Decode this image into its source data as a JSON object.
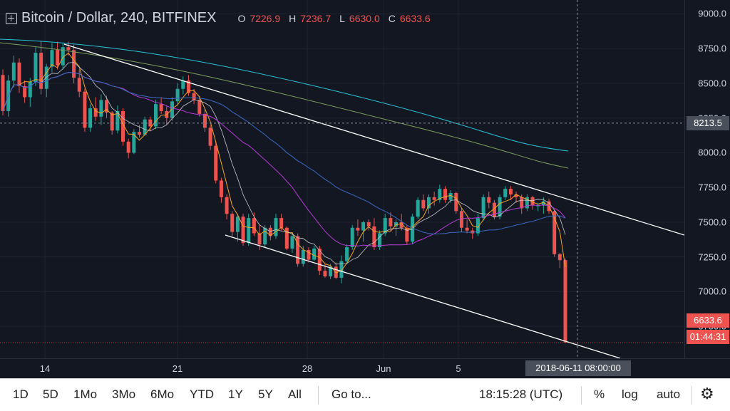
{
  "header": {
    "symbol_title": "Bitcoin / Dollar, 240, BITFINEX",
    "ohlc": [
      {
        "key": "O",
        "value": "7226.9"
      },
      {
        "key": "H",
        "value": "7236.7"
      },
      {
        "key": "L",
        "value": "6630.0"
      },
      {
        "key": "C",
        "value": "6633.6"
      }
    ]
  },
  "price_labels": {
    "crosshair_price": "8213.5",
    "last_price": "6633.6",
    "countdown": "01:44:31"
  },
  "crosshair_time": "2018-06-11 08:00:00",
  "toolbar": {
    "ranges": [
      "1D",
      "5D",
      "1Mo",
      "3Mo",
      "6Mo",
      "YTD",
      "1Y",
      "5Y",
      "All"
    ],
    "goto": "Go to...",
    "clock": "18:15:28 (UTC)",
    "percent": "%",
    "log": "log",
    "auto": "auto"
  },
  "colors": {
    "background": "#131722",
    "up": "#26a69a",
    "down": "#ef5350",
    "trendline": "#ffffff"
  },
  "chart_data": {
    "type": "candlestick",
    "symbol": "BTCUSD",
    "interval": "240",
    "exchange": "BITFINEX",
    "x_ticks": [
      "14",
      "21",
      "28",
      "Jun",
      "5"
    ],
    "y_ticks": [
      9000.0,
      8750.0,
      8500.0,
      8250.0,
      8000.0,
      7750.0,
      7500.0,
      7250.0,
      7000.0,
      6750.0
    ],
    "ylim": [
      6520,
      9100
    ],
    "candles_estimated": [
      [
        8560,
        8600,
        8270,
        8300
      ],
      [
        8300,
        8560,
        8260,
        8520
      ],
      [
        8520,
        8700,
        8470,
        8650
      ],
      [
        8650,
        8680,
        8430,
        8480
      ],
      [
        8480,
        8520,
        8360,
        8400
      ],
      [
        8400,
        8540,
        8330,
        8510
      ],
      [
        8510,
        8760,
        8480,
        8720
      ],
      [
        8720,
        8800,
        8420,
        8460
      ],
      [
        8460,
        8640,
        8400,
        8620
      ],
      [
        8620,
        8790,
        8580,
        8740
      ],
      [
        8740,
        8800,
        8600,
        8630
      ],
      [
        8630,
        8790,
        8600,
        8760
      ],
      [
        8760,
        8800,
        8700,
        8740
      ],
      [
        8740,
        8780,
        8500,
        8540
      ],
      [
        8540,
        8600,
        8400,
        8440
      ],
      [
        8440,
        8460,
        8150,
        8180
      ],
      [
        8180,
        8350,
        8150,
        8320
      ],
      [
        8320,
        8400,
        8230,
        8260
      ],
      [
        8260,
        8420,
        8200,
        8380
      ],
      [
        8380,
        8410,
        8250,
        8290
      ],
      [
        8290,
        8300,
        8130,
        8160
      ],
      [
        8160,
        8340,
        8140,
        8300
      ],
      [
        8300,
        8320,
        8050,
        8080
      ],
      [
        8080,
        8100,
        7960,
        8000
      ],
      [
        8000,
        8170,
        7990,
        8150
      ],
      [
        8150,
        8200,
        8110,
        8130
      ],
      [
        8130,
        8260,
        8120,
        8240
      ],
      [
        8240,
        8260,
        8160,
        8190
      ],
      [
        8190,
        8380,
        8170,
        8350
      ],
      [
        8350,
        8400,
        8280,
        8300
      ],
      [
        8300,
        8340,
        8200,
        8250
      ],
      [
        8250,
        8400,
        8230,
        8370
      ],
      [
        8370,
        8500,
        8340,
        8460
      ],
      [
        8460,
        8550,
        8420,
        8520
      ],
      [
        8520,
        8560,
        8410,
        8430
      ],
      [
        8430,
        8460,
        8350,
        8380
      ],
      [
        8380,
        8410,
        8260,
        8280
      ],
      [
        8280,
        8320,
        8150,
        8180
      ],
      [
        8180,
        8200,
        8020,
        8050
      ],
      [
        8050,
        8080,
        7780,
        7800
      ],
      [
        7800,
        7820,
        7640,
        7680
      ],
      [
        7680,
        7700,
        7520,
        7560
      ],
      [
        7560,
        7580,
        7400,
        7430
      ],
      [
        7430,
        7560,
        7360,
        7540
      ],
      [
        7540,
        7560,
        7330,
        7350
      ],
      [
        7350,
        7560,
        7330,
        7530
      ],
      [
        7530,
        7570,
        7400,
        7420
      ],
      [
        7420,
        7480,
        7300,
        7340
      ],
      [
        7340,
        7480,
        7320,
        7460
      ],
      [
        7460,
        7480,
        7370,
        7400
      ],
      [
        7400,
        7560,
        7380,
        7530
      ],
      [
        7530,
        7560,
        7440,
        7460
      ],
      [
        7460,
        7470,
        7300,
        7310
      ],
      [
        7310,
        7420,
        7280,
        7400
      ],
      [
        7400,
        7420,
        7180,
        7200
      ],
      [
        7200,
        7330,
        7180,
        7300
      ],
      [
        7300,
        7320,
        7210,
        7230
      ],
      [
        7230,
        7330,
        7220,
        7310
      ],
      [
        7310,
        7330,
        7120,
        7150
      ],
      [
        7150,
        7200,
        7100,
        7110
      ],
      [
        7110,
        7200,
        7090,
        7180
      ],
      [
        7180,
        7210,
        7090,
        7100
      ],
      [
        7100,
        7260,
        7060,
        7220
      ],
      [
        7220,
        7340,
        7200,
        7320
      ],
      [
        7320,
        7480,
        7300,
        7460
      ],
      [
        7460,
        7520,
        7400,
        7440
      ],
      [
        7440,
        7510,
        7360,
        7500
      ],
      [
        7500,
        7520,
        7440,
        7470
      ],
      [
        7470,
        7530,
        7300,
        7320
      ],
      [
        7320,
        7440,
        7300,
        7420
      ],
      [
        7420,
        7560,
        7400,
        7530
      ],
      [
        7530,
        7570,
        7440,
        7470
      ],
      [
        7470,
        7520,
        7400,
        7500
      ],
      [
        7500,
        7560,
        7440,
        7460
      ],
      [
        7460,
        7480,
        7340,
        7360
      ],
      [
        7360,
        7560,
        7340,
        7540
      ],
      [
        7540,
        7680,
        7520,
        7660
      ],
      [
        7660,
        7700,
        7580,
        7600
      ],
      [
        7600,
        7700,
        7560,
        7680
      ],
      [
        7680,
        7720,
        7620,
        7660
      ],
      [
        7660,
        7770,
        7640,
        7740
      ],
      [
        7740,
        7760,
        7640,
        7660
      ],
      [
        7660,
        7730,
        7640,
        7710
      ],
      [
        7710,
        7720,
        7560,
        7580
      ],
      [
        7580,
        7600,
        7430,
        7460
      ],
      [
        7460,
        7520,
        7420,
        7440
      ],
      [
        7440,
        7460,
        7380,
        7420
      ],
      [
        7420,
        7560,
        7400,
        7530
      ],
      [
        7530,
        7700,
        7510,
        7680
      ],
      [
        7680,
        7720,
        7600,
        7640
      ],
      [
        7640,
        7660,
        7520,
        7540
      ],
      [
        7540,
        7700,
        7520,
        7680
      ],
      [
        7680,
        7760,
        7660,
        7740
      ],
      [
        7740,
        7760,
        7660,
        7700
      ],
      [
        7700,
        7720,
        7640,
        7680
      ],
      [
        7680,
        7700,
        7560,
        7600
      ],
      [
        7600,
        7700,
        7580,
        7680
      ],
      [
        7680,
        7690,
        7590,
        7620
      ],
      [
        7620,
        7640,
        7580,
        7620
      ],
      [
        7620,
        7680,
        7560,
        7650
      ],
      [
        7650,
        7670,
        7560,
        7580
      ],
      [
        7580,
        7590,
        7250,
        7270
      ],
      [
        7270,
        7280,
        7170,
        7227
      ],
      [
        7227,
        7237,
        6630,
        6634
      ]
    ],
    "indicators": [
      "moving averages (several periods)"
    ],
    "annotations": [
      "descending channel: upper trendline",
      "descending channel: lower trendline"
    ]
  }
}
